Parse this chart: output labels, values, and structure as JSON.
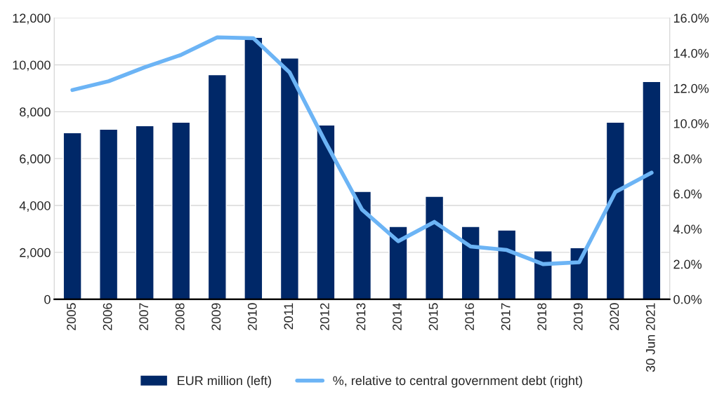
{
  "chart_data": {
    "type": "bar",
    "categories": [
      "2005",
      "2006",
      "2007",
      "2008",
      "2009",
      "2010",
      "2011",
      "2012",
      "2013",
      "2014",
      "2015",
      "2016",
      "2017",
      "2018",
      "2019",
      "2020",
      "30 Jun 2021"
    ],
    "series": [
      {
        "name": "EUR million (left)",
        "color": "#002868",
        "values": [
          7100,
          7250,
          7400,
          7550,
          9580,
          11170,
          10290,
          7430,
          4600,
          3100,
          4390,
          3100,
          2950,
          2060,
          2200,
          7550,
          9290
        ]
      },
      {
        "name": "%, relative to central government debt (right)",
        "type": "line",
        "axis": "y2",
        "color": "#6cb4f5",
        "values": [
          11.9,
          12.4,
          13.2,
          13.9,
          14.9,
          14.85,
          12.9,
          8.9,
          5.1,
          3.3,
          4.4,
          3.0,
          2.8,
          2.0,
          2.1,
          6.1,
          7.2
        ]
      }
    ],
    "ylim": [
      0,
      12000
    ],
    "yticks": [
      {
        "value": 0,
        "label": "0"
      },
      {
        "value": 2000,
        "label": "2,000"
      },
      {
        "value": 4000,
        "label": "4,000"
      },
      {
        "value": 6000,
        "label": "6,000"
      },
      {
        "value": 8000,
        "label": "8,000"
      },
      {
        "value": 10000,
        "label": "10,000"
      },
      {
        "value": 12000,
        "label": "12,000"
      }
    ],
    "y2lim": [
      0,
      16
    ],
    "y2ticks": [
      {
        "value": 0,
        "label": "0.0%"
      },
      {
        "value": 2,
        "label": "2.0%"
      },
      {
        "value": 4,
        "label": "4.0%"
      },
      {
        "value": 6,
        "label": "6.0%"
      },
      {
        "value": 8,
        "label": "8.0%"
      },
      {
        "value": 10,
        "label": "10.0%"
      },
      {
        "value": 12,
        "label": "12.0%"
      },
      {
        "value": 14,
        "label": "14.0%"
      },
      {
        "value": 16,
        "label": "16.0%"
      }
    ],
    "grid": "y",
    "legend": "bottom"
  }
}
